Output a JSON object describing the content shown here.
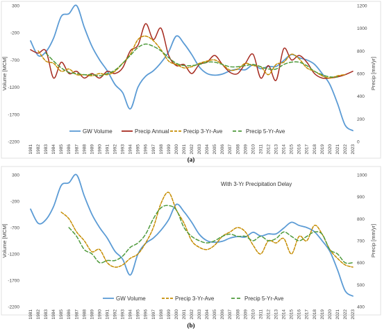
{
  "chart_data": [
    {
      "type": "line",
      "caption": "(a)",
      "annotation": "",
      "x_ticks": [
        "1981",
        "1982",
        "1983",
        "1984",
        "1985",
        "1986",
        "1987",
        "1988",
        "1989",
        "1990",
        "1991",
        "1992",
        "1993",
        "1994",
        "1995",
        "1996",
        "1997",
        "1998",
        "1999",
        "2000",
        "2001",
        "2002",
        "2003",
        "2004",
        "2005",
        "2006",
        "2007",
        "2008",
        "2009",
        "2010",
        "2011",
        "2012",
        "2013",
        "2014",
        "2015",
        "2016",
        "2017",
        "2018",
        "2019",
        "2020",
        "2021",
        "2022",
        "2023"
      ],
      "y_left": {
        "label": "Volume [MCM]",
        "min": -2200,
        "max": 300,
        "ticks": [
          "300",
          "-200",
          "-700",
          "-1200",
          "-1700",
          "-2200"
        ]
      },
      "y_right": {
        "label": "Precip [mm/yr]",
        "min": 0,
        "max": 1200,
        "ticks": [
          "1200",
          "1000",
          "800",
          "600",
          "400",
          "200",
          "0"
        ]
      },
      "series": [
        {
          "name": "GW Volume",
          "axis": "left",
          "color": "#5b9bd5",
          "dash": "",
          "x": [
            1981,
            1982,
            1983,
            1984,
            1985,
            1986,
            1987,
            1988,
            1989,
            1990,
            1991,
            1992,
            1993,
            1994,
            1995,
            1996,
            1997,
            1998,
            1999,
            2000,
            2001,
            2002,
            2003,
            2004,
            2005,
            2006,
            2007,
            2008,
            2009,
            2010,
            2011,
            2012,
            2013,
            2014,
            2015,
            2016,
            2017,
            2018,
            2019,
            2020,
            2021,
            2022,
            2023
          ],
          "values": [
            -350,
            -620,
            -550,
            -300,
            100,
            150,
            300,
            -100,
            -450,
            -700,
            -900,
            -1150,
            -1300,
            -1600,
            -1200,
            -1000,
            -900,
            -750,
            -550,
            -260,
            -400,
            -600,
            -830,
            -950,
            -980,
            -960,
            -900,
            -870,
            -880,
            -790,
            -860,
            -820,
            -820,
            -710,
            -600,
            -660,
            -700,
            -780,
            -950,
            -1150,
            -1500,
            -1900,
            -2000
          ]
        },
        {
          "name": "Precip Annual",
          "axis": "right",
          "color": "#a62b20",
          "dash": "",
          "x": [
            1981,
            1982,
            1983,
            1984,
            1985,
            1986,
            1987,
            1988,
            1989,
            1990,
            1991,
            1992,
            1993,
            1994,
            1995,
            1996,
            1997,
            1998,
            1999,
            2000,
            2001,
            2002,
            2003,
            2004,
            2005,
            2006,
            2007,
            2008,
            2009,
            2010,
            2011,
            2012,
            2013,
            2014,
            2015,
            2016,
            2017,
            2018,
            2019,
            2020,
            2021,
            2022,
            2023
          ],
          "values": [
            810,
            780,
            800,
            560,
            700,
            600,
            620,
            560,
            600,
            560,
            620,
            600,
            650,
            800,
            850,
            1040,
            900,
            1000,
            760,
            670,
            680,
            600,
            680,
            700,
            760,
            680,
            610,
            600,
            690,
            770,
            560,
            670,
            540,
            820,
            720,
            760,
            700,
            600,
            560,
            560,
            570,
            590,
            620
          ]
        },
        {
          "name": "Precip 3-Yr-Ave",
          "axis": "right",
          "color": "#c58c00",
          "dash": "4 2",
          "x": [
            1982,
            1983,
            1984,
            1985,
            1986,
            1987,
            1988,
            1989,
            1990,
            1991,
            1992,
            1993,
            1994,
            1995,
            1996,
            1997,
            1998,
            1999,
            2000,
            2001,
            2002,
            2003,
            2004,
            2005,
            2006,
            2007,
            2008,
            2009,
            2010,
            2011,
            2012,
            2013,
            2014,
            2015,
            2016,
            2017,
            2018,
            2019,
            2020,
            2021,
            2022
          ],
          "values": [
            800,
            710,
            690,
            620,
            640,
            590,
            590,
            580,
            600,
            590,
            620,
            690,
            770,
            900,
            930,
            890,
            810,
            710,
            680,
            650,
            660,
            690,
            710,
            720,
            680,
            630,
            640,
            690,
            670,
            660,
            590,
            680,
            700,
            770,
            730,
            650,
            620,
            580,
            560,
            580,
            590
          ]
        },
        {
          "name": "Precip 5-Yr-Ave",
          "axis": "right",
          "color": "#4e9a3c",
          "dash": "5 3",
          "x": [
            1983,
            1984,
            1985,
            1986,
            1987,
            1988,
            1989,
            1990,
            1991,
            1992,
            1993,
            1994,
            1995,
            1996,
            1997,
            1998,
            1999,
            2000,
            2001,
            2002,
            2003,
            2004,
            2005,
            2006,
            2007,
            2008,
            2009,
            2010,
            2011,
            2012,
            2013,
            2014,
            2015,
            2016,
            2017,
            2018,
            2019,
            2020,
            2021
          ],
          "values": [
            780,
            710,
            650,
            610,
            600,
            590,
            590,
            580,
            600,
            630,
            690,
            760,
            830,
            860,
            840,
            800,
            740,
            690,
            670,
            670,
            680,
            700,
            700,
            680,
            660,
            660,
            670,
            680,
            660,
            640,
            640,
            680,
            700,
            700,
            670,
            620,
            590,
            570,
            570
          ]
        }
      ],
      "legend": [
        "GW Volume",
        "Precip Annual",
        "Precip 3-Yr-Ave",
        "Precip 5-Yr-Ave"
      ]
    },
    {
      "type": "line",
      "caption": "(b)",
      "annotation": "With 3-Yr Precipitation Delay",
      "x_ticks": [
        "1981",
        "1982",
        "1983",
        "1984",
        "1985",
        "1986",
        "1987",
        "1988",
        "1989",
        "1990",
        "1991",
        "1992",
        "1993",
        "1994",
        "1995",
        "1996",
        "1997",
        "1998",
        "1999",
        "2000",
        "2001",
        "2002",
        "2003",
        "2004",
        "2005",
        "2006",
        "2007",
        "2008",
        "2009",
        "2010",
        "2011",
        "2012",
        "2013",
        "2014",
        "2015",
        "2016",
        "2017",
        "2018",
        "2019",
        "2020",
        "2021",
        "2022",
        "2023"
      ],
      "y_left": {
        "label": "Volume [MCM]",
        "min": -2200,
        "max": 300,
        "ticks": [
          "300",
          "-200",
          "-700",
          "-1200",
          "-1700",
          "-2200"
        ]
      },
      "y_right": {
        "label": "Precip [mm/yr]",
        "min": 400,
        "max": 1000,
        "ticks": [
          "1000",
          "900",
          "800",
          "700",
          "600",
          "500",
          "400"
        ]
      },
      "series": [
        {
          "name": "GW Volume",
          "axis": "left",
          "color": "#5b9bd5",
          "dash": "",
          "x": [
            1981,
            1982,
            1983,
            1984,
            1985,
            1986,
            1987,
            1988,
            1989,
            1990,
            1991,
            1992,
            1993,
            1994,
            1995,
            1996,
            1997,
            1998,
            1999,
            2000,
            2001,
            2002,
            2003,
            2004,
            2005,
            2006,
            2007,
            2008,
            2009,
            2010,
            2011,
            2012,
            2013,
            2014,
            2015,
            2016,
            2017,
            2018,
            2019,
            2020,
            2021,
            2022,
            2023
          ],
          "values": [
            -350,
            -620,
            -550,
            -300,
            100,
            150,
            300,
            -100,
            -450,
            -700,
            -900,
            -1150,
            -1300,
            -1600,
            -1200,
            -1000,
            -900,
            -750,
            -550,
            -260,
            -400,
            -600,
            -830,
            -950,
            -980,
            -960,
            -900,
            -870,
            -880,
            -790,
            -860,
            -820,
            -820,
            -710,
            -600,
            -660,
            -700,
            -780,
            -950,
            -1150,
            -1500,
            -1900,
            -2000
          ]
        },
        {
          "name": "Precip 3-Yr-Ave",
          "axis": "right",
          "color": "#c58c00",
          "dash": "4 2",
          "x": [
            1985,
            1986,
            1987,
            1988,
            1989,
            1990,
            1991,
            1992,
            1993,
            1994,
            1995,
            1996,
            1997,
            1998,
            1999,
            2000,
            2001,
            2002,
            2003,
            2004,
            2005,
            2006,
            2007,
            2008,
            2009,
            2010,
            2011,
            2012,
            2013,
            2014,
            2015,
            2016,
            2017,
            2018,
            2019,
            2020,
            2021,
            2022,
            2023
          ],
          "values": [
            830,
            800,
            740,
            700,
            650,
            660,
            600,
            580,
            590,
            620,
            640,
            690,
            760,
            870,
            920,
            840,
            780,
            700,
            670,
            660,
            680,
            720,
            740,
            760,
            740,
            680,
            640,
            700,
            690,
            710,
            640,
            720,
            700,
            770,
            730,
            660,
            620,
            590,
            580
          ]
        },
        {
          "name": "Precip 5-Yr-Ave",
          "axis": "right",
          "color": "#4e9a3c",
          "dash": "5 3",
          "x": [
            1986,
            1987,
            1988,
            1989,
            1990,
            1991,
            1992,
            1993,
            1994,
            1995,
            1996,
            1997,
            1998,
            1999,
            2000,
            2001,
            2002,
            2003,
            2004,
            2005,
            2006,
            2007,
            2008,
            2009,
            2010,
            2011,
            2012,
            2013,
            2014,
            2015,
            2016,
            2017,
            2018,
            2019,
            2020,
            2021,
            2022,
            2023
          ],
          "values": [
            760,
            720,
            660,
            640,
            600,
            610,
            610,
            630,
            670,
            690,
            730,
            800,
            850,
            860,
            840,
            760,
            720,
            700,
            690,
            700,
            720,
            730,
            720,
            720,
            700,
            720,
            700,
            710,
            740,
            720,
            700,
            720,
            740,
            730,
            660,
            640,
            600,
            600
          ]
        }
      ],
      "legend": [
        "GW Volume",
        "Precip 3-Yr-Ave",
        "Precip 5-Yr-Ave"
      ]
    }
  ]
}
